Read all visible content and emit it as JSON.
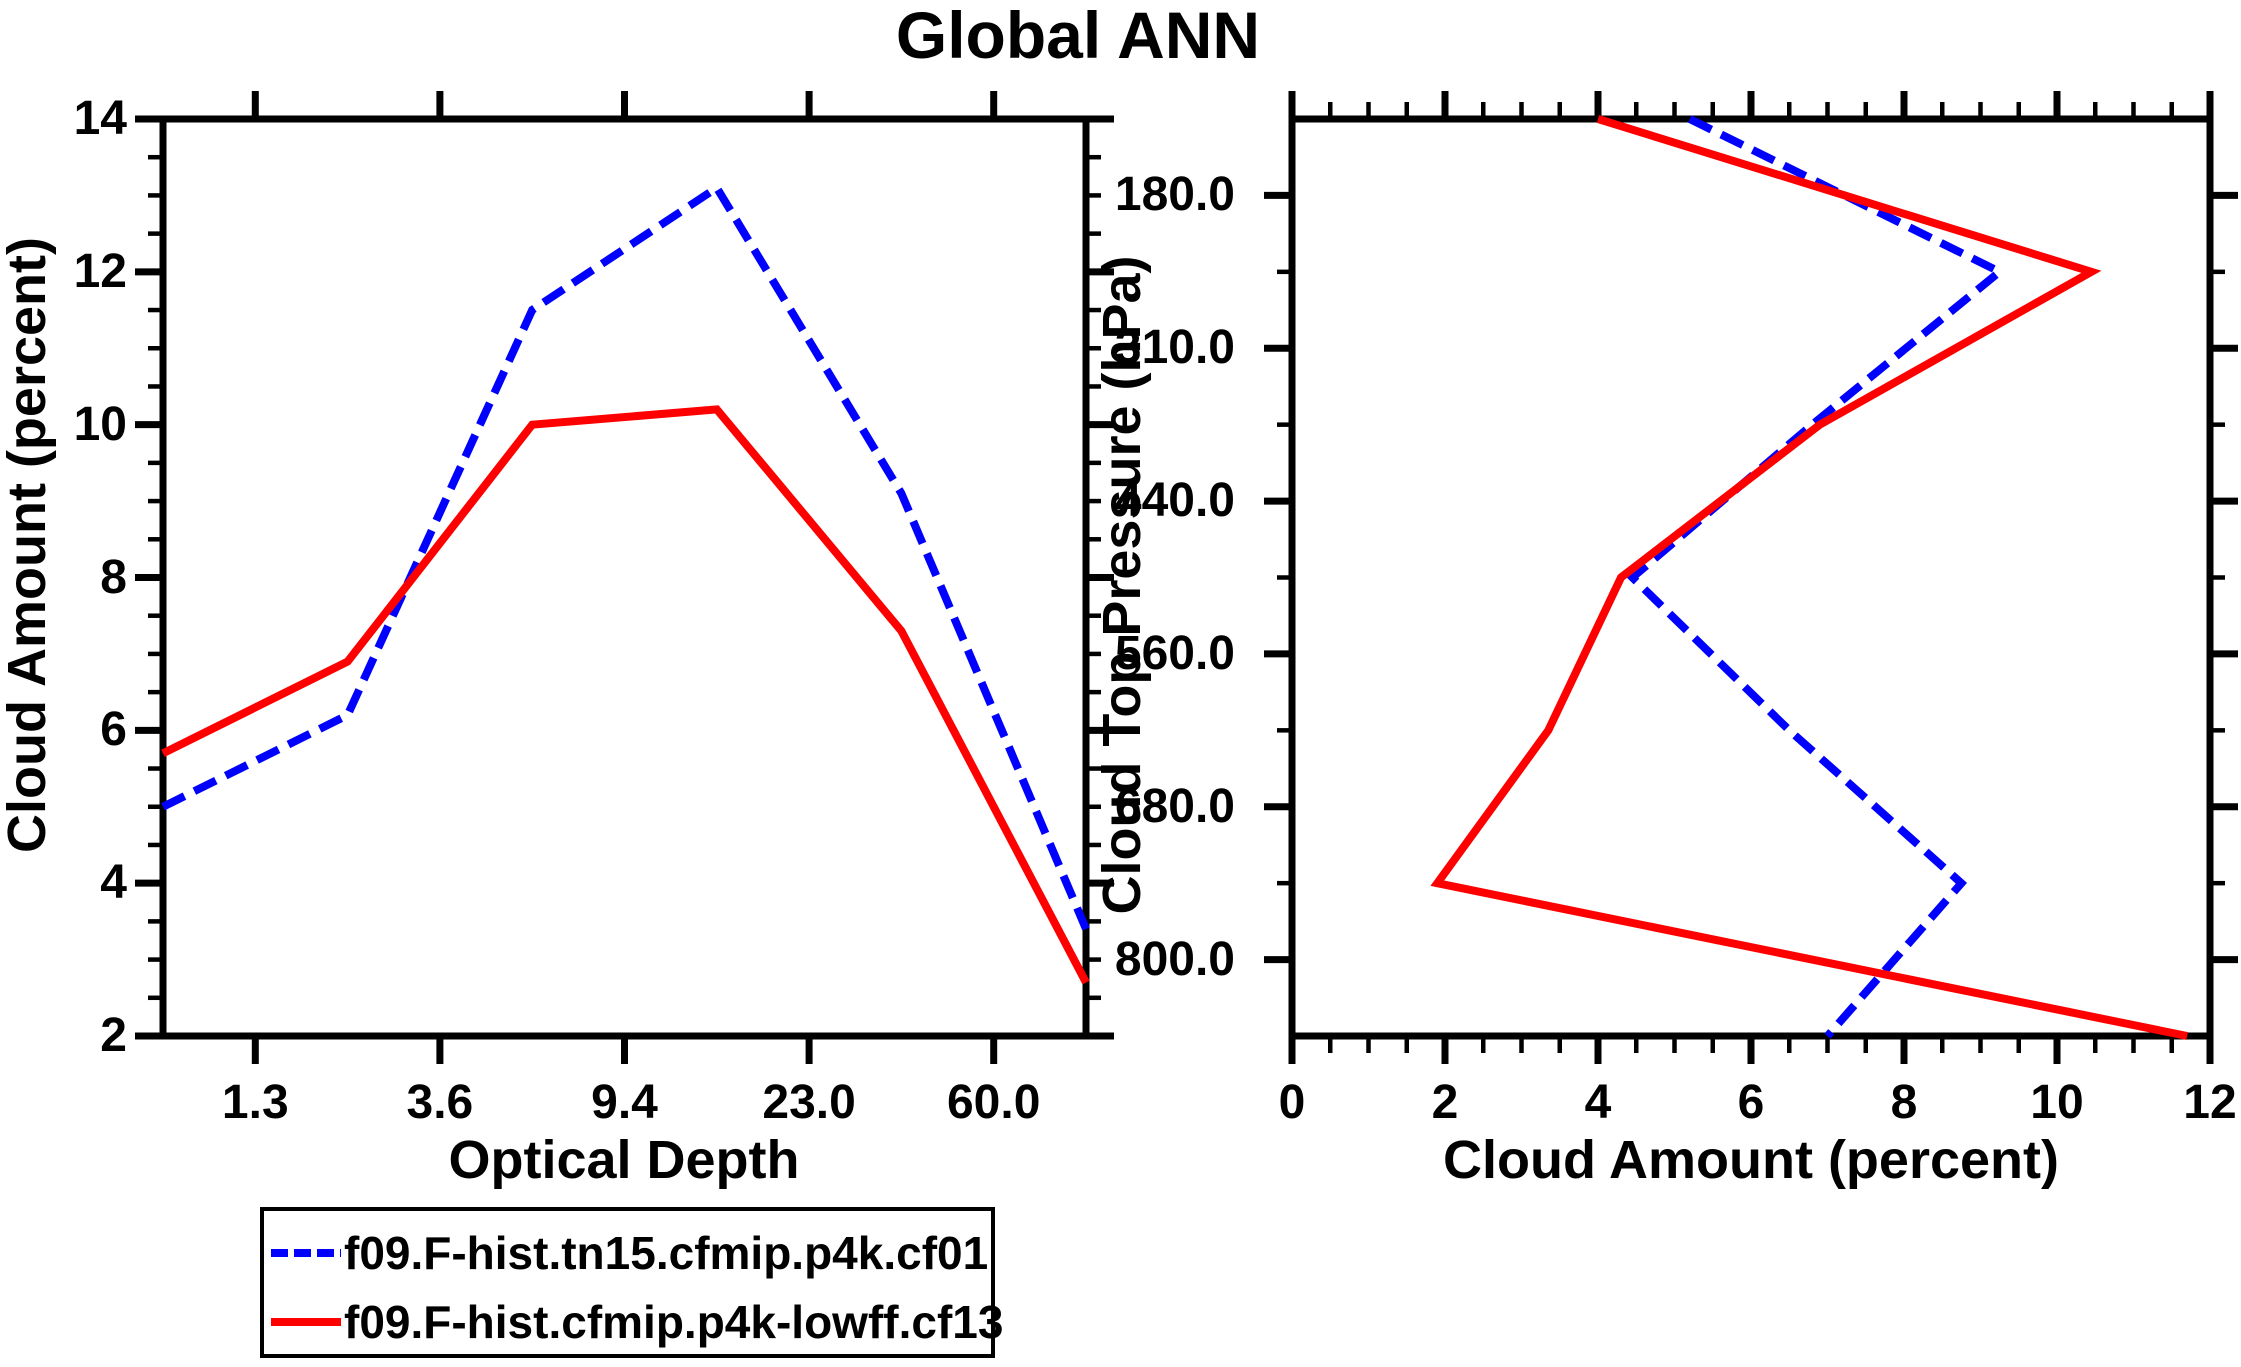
{
  "title": "Global ANN",
  "chart_data": [
    {
      "type": "line",
      "panel": "left",
      "title": "",
      "xlabel": "Optical Depth",
      "ylabel": "Cloud Amount (percent)",
      "x_tick_labels": [
        "1.3",
        "3.6",
        "9.4",
        "23.0",
        "60.0"
      ],
      "x_axis_style": "categorical bin boundaries; 6 data points at bin centers spanning full axis",
      "ylim": [
        2,
        14
      ],
      "y_tick_labels": [
        "14",
        "12",
        "10",
        "8",
        "6",
        "4",
        "2"
      ],
      "y_major_step": 2,
      "y_minor_step": 0.5,
      "grid": "off",
      "series": [
        {
          "name": "f09.F-hist.tn15.cfmip.p4k.cf01",
          "color": "#0000ff",
          "style": "dashed",
          "values": [
            5.0,
            6.2,
            11.5,
            13.1,
            9.1,
            3.4
          ]
        },
        {
          "name": "f09.F-hist.cfmip.p4k-lowff.cf13",
          "color": "#ff0000",
          "style": "solid",
          "values": [
            5.7,
            6.9,
            10.0,
            10.2,
            7.3,
            2.7
          ]
        }
      ]
    },
    {
      "type": "line",
      "panel": "right",
      "title": "",
      "xlabel": "Cloud Amount (percent)",
      "ylabel": "Cloud Top Pressure (hPa)",
      "xlim": [
        0,
        12
      ],
      "x_tick_labels": [
        "0",
        "2",
        "4",
        "6",
        "8",
        "10",
        "12"
      ],
      "x_major_step": 2,
      "x_minor_step": 0.5,
      "y_tick_labels": [
        "180.0",
        "310.0",
        "440.0",
        "560.0",
        "680.0",
        "800.0"
      ],
      "y_axis_style": "pressure bin boundaries; 7 data points at bin centers spanning full axis, pressure increasing downward",
      "y_bin_centers_hPa": [
        115,
        245,
        375,
        500,
        620,
        740,
        900
      ],
      "grid": "off",
      "series": [
        {
          "name": "f09.F-hist.tn15.cfmip.p4k.cf01",
          "color": "#0000ff",
          "style": "dashed",
          "values": [
            5.2,
            9.25,
            6.8,
            4.45,
            6.5,
            8.75,
            7.0
          ]
        },
        {
          "name": "f09.F-hist.cfmip.p4k-lowff.cf13",
          "color": "#ff0000",
          "style": "solid",
          "values": [
            4.0,
            10.45,
            6.9,
            4.3,
            3.35,
            1.9,
            11.7
          ]
        }
      ]
    }
  ],
  "legend": {
    "position": "bottom-left",
    "entries": [
      {
        "label": "f09.F-hist.tn15.cfmip.p4k.cf01",
        "color": "#0000ff",
        "style": "dashed"
      },
      {
        "label": "f09.F-hist.cfmip.p4k-lowff.cf13",
        "color": "#ff0000",
        "style": "solid"
      }
    ]
  },
  "colors": {
    "background": "#ffffff",
    "frame": "#000000",
    "text": "#000000",
    "series_blue": "#0000ff",
    "series_red": "#ff0000"
  }
}
